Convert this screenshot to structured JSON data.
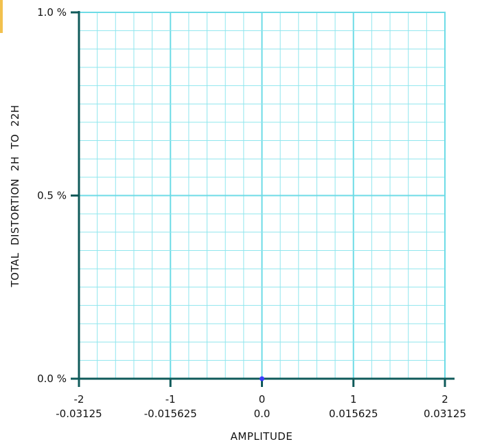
{
  "colors": {
    "background": "#ffffff",
    "grid_minor": "#8fe6ee",
    "grid_major": "#6ddbe6",
    "axis": "#0f5a5a",
    "marker": "#3b3bff",
    "corner_mark": "#f2c14e"
  },
  "chart_data": {
    "type": "scatter",
    "xlabel": "AMPLITUDE",
    "ylabel": "TOTAL  DISTORTION  2H  TO  22H",
    "x_range": [
      -2,
      2
    ],
    "y_range": [
      0,
      1.0
    ],
    "x_ticks": [
      {
        "value": -2,
        "label": "-2",
        "sublabel": "-0.03125"
      },
      {
        "value": -1,
        "label": "-1",
        "sublabel": "-0.015625"
      },
      {
        "value": 0,
        "label": "0",
        "sublabel": "0.0"
      },
      {
        "value": 1,
        "label": "1",
        "sublabel": "0.015625"
      },
      {
        "value": 2,
        "label": "2",
        "sublabel": "0.03125"
      }
    ],
    "y_ticks": [
      {
        "value": 0.0,
        "label": "0.0 %"
      },
      {
        "value": 0.5,
        "label": "0.5 %"
      },
      {
        "value": 1.0,
        "label": "1.0 %"
      }
    ],
    "grid": true,
    "minor_x_step": 0.2,
    "minor_y_step": 0.05,
    "points": [
      {
        "x": 0,
        "y": 0
      }
    ]
  }
}
